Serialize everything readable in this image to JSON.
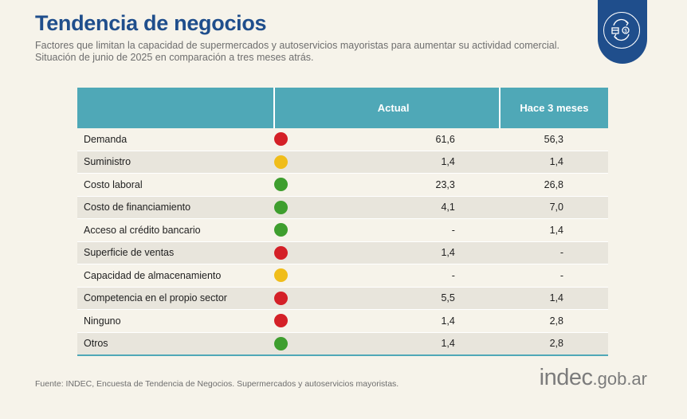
{
  "header": {
    "title": "Tendencia de negocios",
    "subtitle_line1": "Factores que limitan la capacidad de supermercados y autoservicios mayoristas para aumentar su actividad comercial.",
    "subtitle_line2": "Situación de junio de 2025 en comparación a tres meses atrás.",
    "badge_icon": "exchange-icon"
  },
  "colors": {
    "title": "#1f4e8c",
    "header_bg": "#4fa8b7",
    "red": "#d42027",
    "yellow": "#f0bd1a",
    "green": "#3e9e2e"
  },
  "chart_data": {
    "type": "table",
    "columns": [
      "",
      "",
      "Actual",
      "Hace 3 meses"
    ],
    "rows": [
      {
        "label": "Demanda",
        "status": "red",
        "actual": "61,6",
        "prev": "56,3"
      },
      {
        "label": "Suministro",
        "status": "yellow",
        "actual": "1,4",
        "prev": "1,4"
      },
      {
        "label": "Costo laboral",
        "status": "green",
        "actual": "23,3",
        "prev": "26,8"
      },
      {
        "label": "Costo de financiamiento",
        "status": "green",
        "actual": "4,1",
        "prev": "7,0"
      },
      {
        "label": "Acceso al crédito bancario",
        "status": "green",
        "actual": "-",
        "prev": "1,4"
      },
      {
        "label": "Superficie de ventas",
        "status": "red",
        "actual": "1,4",
        "prev": "-"
      },
      {
        "label": "Capacidad de almacenamiento",
        "status": "yellow",
        "actual": "-",
        "prev": "-"
      },
      {
        "label": "Competencia en el propio sector",
        "status": "red",
        "actual": "5,5",
        "prev": "1,4"
      },
      {
        "label": "Ninguno",
        "status": "red",
        "actual": "1,4",
        "prev": "2,8"
      },
      {
        "label": "Otros",
        "status": "green",
        "actual": "1,4",
        "prev": "2,8"
      }
    ]
  },
  "footer": {
    "source": "Fuente: INDEC, Encuesta de Tendencia de Negocios. Supermercados y autoservicios mayoristas.",
    "logo_main": "indec",
    "logo_domain": ".gob.ar"
  }
}
